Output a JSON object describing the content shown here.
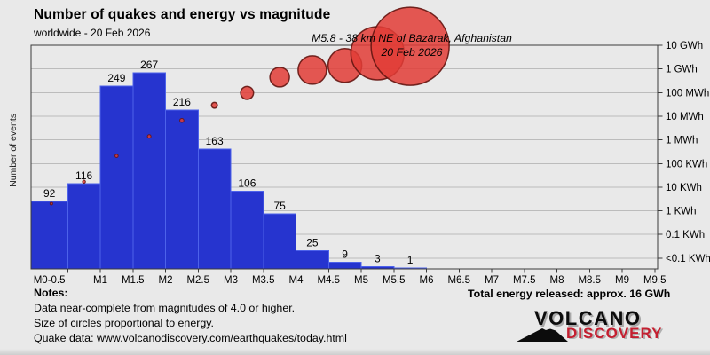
{
  "header": {
    "title": "Number of quakes and energy vs magnitude",
    "subtitle": "worldwide - 20 Feb 2026"
  },
  "chart_data": {
    "type": "bar",
    "title": "Number of quakes and energy vs magnitude",
    "subtitle": "worldwide - 20 Feb 2026",
    "ylabel": "Number of events",
    "ylim_left": [
      0,
      305
    ],
    "grid": "horizontal",
    "legend": "none",
    "x_tick_labels": [
      "M0-0.5",
      "M1",
      "M1.5",
      "M2",
      "M2.5",
      "M3",
      "M3.5",
      "M4",
      "M4.5",
      "M5",
      "M5.5",
      "M6",
      "M6.5",
      "M7",
      "M7.5",
      "M8",
      "M8.5",
      "M9",
      "M9.5"
    ],
    "bars": {
      "bin_start_magnitude": [
        0,
        0.5,
        1,
        1.5,
        2,
        2.5,
        3,
        3.5,
        4,
        4.5,
        5,
        5.5
      ],
      "bin_width_magnitude": 0.5,
      "counts": [
        92,
        116,
        249,
        267,
        216,
        163,
        106,
        75,
        25,
        9,
        3,
        1
      ]
    },
    "energy_bubbles": {
      "bin_center_magnitude": [
        0.25,
        0.75,
        1.25,
        1.75,
        2.25,
        2.75,
        3.25,
        3.75,
        4.25,
        4.75,
        5.25,
        5.75
      ],
      "energy_wh": [
        2000,
        17000,
        210000,
        1400000,
        6600000,
        29000000,
        97000000,
        450000000,
        900000000,
        1400000000,
        4600000000,
        9100000000
      ],
      "radius_px": [
        1.5,
        1.7,
        1.8,
        2,
        2.3,
        3.3,
        7.3,
        11,
        16,
        19,
        30,
        44
      ]
    },
    "right_axis": {
      "tick_labels": [
        "10 GWh",
        "1 GWh",
        "100 MWh",
        "10 MWh",
        "1 MWh",
        "100 KWh",
        "10 KWh",
        "1 KWh",
        "0.1 KWh",
        "<0.1 KWh"
      ],
      "tick_values_wh": [
        10000000000.0,
        1000000000.0,
        100000000.0,
        10000000.0,
        1000000.0,
        100000.0,
        10000.0,
        1000.0,
        100.0,
        10.0
      ]
    },
    "annotation": {
      "line1": "M5.8 - 38 km NE of Bāzārak, Afghanistan",
      "line2": "20 Feb 2026"
    },
    "colors": {
      "bar_fill": "#2634cf",
      "bar_edge": "#4d62ea",
      "bubble_fill": "#e23c36",
      "bubble_edge": "#641511",
      "background": "#e9e9e9",
      "gridline": "#bcbcbc",
      "axis": "#3a3a3a",
      "logo_red": "#c41f30"
    }
  },
  "notes": {
    "heading": "Notes:",
    "lines": [
      "Data near-complete from magnitudes of 4.0 or higher.",
      "Size of circles proportional to energy.",
      "Quake data: www.volcanodiscovery.com/earthquakes/today.html"
    ]
  },
  "footer": {
    "total_energy": "Total energy released: approx. 16 GWh"
  },
  "logo": {
    "line1": "VOLCANO",
    "line2": "DISCOVERY"
  }
}
